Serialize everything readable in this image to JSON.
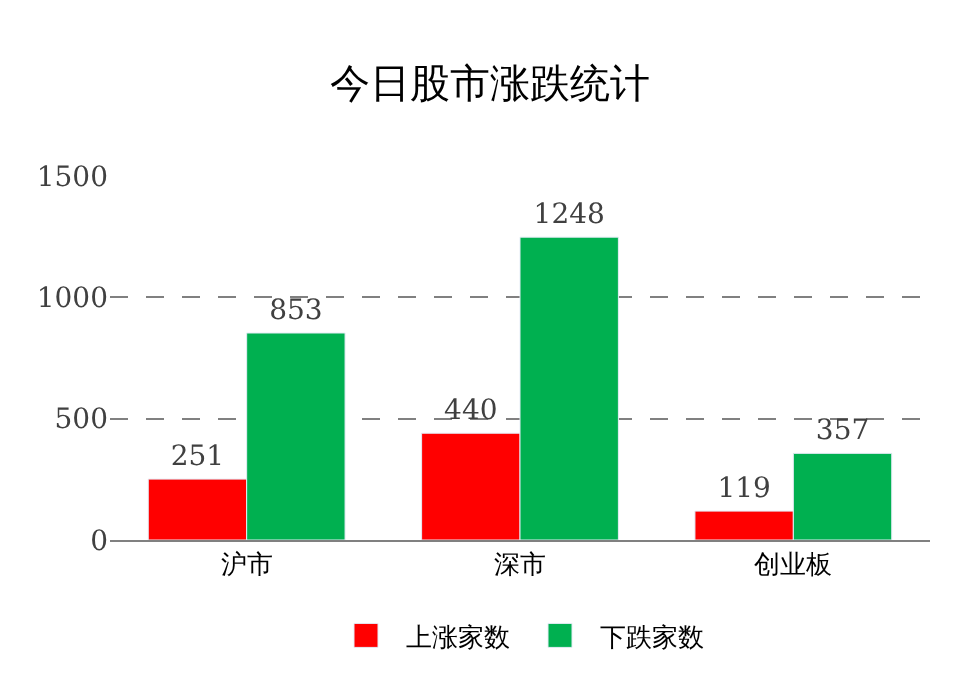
{
  "chart_data": {
    "type": "bar",
    "title": "今日股市涨跌统计",
    "categories": [
      "沪市",
      "深市",
      "创业板"
    ],
    "series": [
      {
        "name": "上涨家数",
        "color": "#ff0000",
        "values": [
          251,
          440,
          119
        ]
      },
      {
        "name": "下跌家数",
        "color": "#00b050",
        "values": [
          853,
          1248,
          357
        ]
      }
    ],
    "ylim": [
      0,
      1500
    ],
    "yticks": [
      0,
      500,
      1000,
      1500
    ],
    "grid": "y",
    "legend": "bottom",
    "data_labels": true
  }
}
